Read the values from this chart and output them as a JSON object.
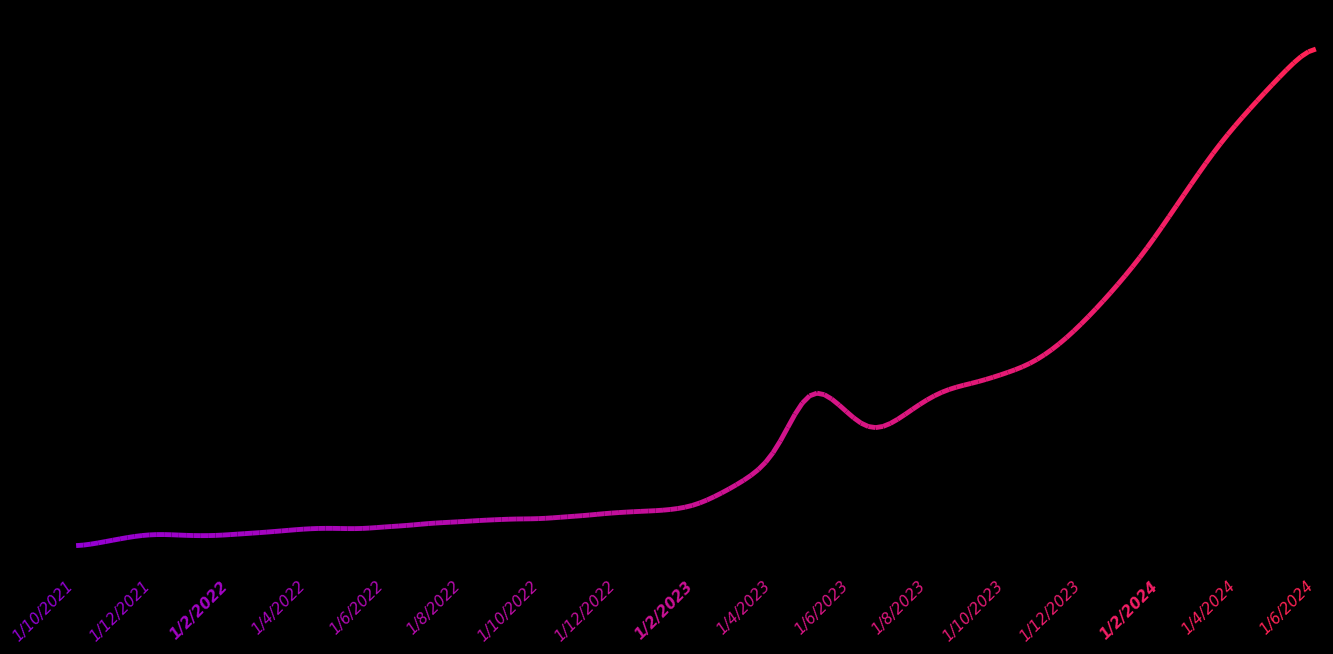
{
  "background_color": "#000000",
  "line_width": 3.5,
  "color_start": "#9400D3",
  "color_end": "#FF2255",
  "x_tick_labels": [
    "1/10/2021",
    "1/12/2021",
    "1/2/2022",
    "1/4/2022",
    "1/6/2022",
    "1/8/2022",
    "1/10/2022",
    "1/12/2022",
    "1/2/2023",
    "1/4/2023",
    "1/6/2023",
    "1/8/2023",
    "1/10/2023",
    "1/12/2023",
    "1/2/2024",
    "1/4/2024",
    "1/6/2024"
  ],
  "tick_bold_indices": [
    2,
    8,
    14
  ],
  "label_fontsize": 11
}
